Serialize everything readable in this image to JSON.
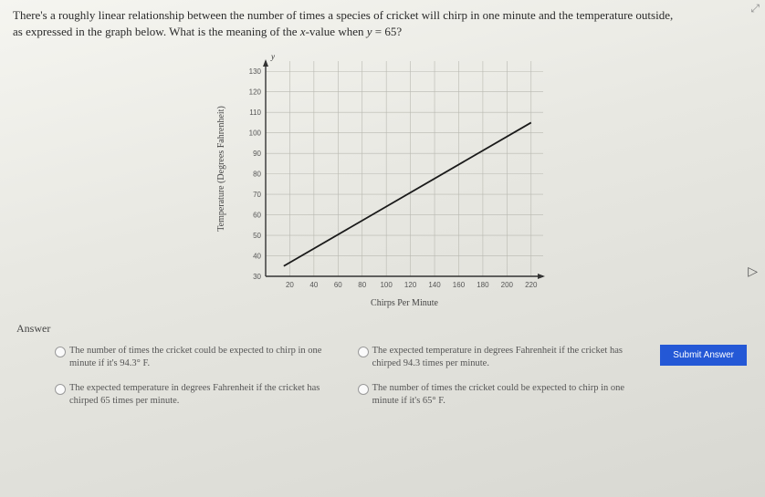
{
  "question": {
    "line1": "There's a roughly linear relationship between the number of times a species of cricket will chirp in one minute and the temperature outside,",
    "line2_prefix": "as expressed in the graph below. What is the meaning of the ",
    "line2_var": "x",
    "line2_mid": "-value when ",
    "line2_eq_var": "y",
    "line2_eq": " = 65?"
  },
  "chart": {
    "type": "line",
    "ylabel": "Temperature (Degrees Fahrenheit)",
    "xlabel": "Chirps Per Minute",
    "y_axis_label_top": "y",
    "x_ticks": [
      "20",
      "40",
      "60",
      "80",
      "100",
      "120",
      "140",
      "160",
      "180",
      "200",
      "220"
    ],
    "y_ticks": [
      "30",
      "40",
      "50",
      "60",
      "70",
      "80",
      "90",
      "100",
      "110",
      "120",
      "130"
    ],
    "xlim": [
      0,
      230
    ],
    "ylim": [
      30,
      135
    ],
    "line_points": [
      [
        15,
        35
      ],
      [
        220,
        105
      ]
    ],
    "axis_color": "#333333",
    "grid_color": "#b8b8b0",
    "line_color": "#1a1a1a",
    "line_width": 1.8,
    "tick_font_size": 8,
    "label_font_size": 10,
    "background_color": "transparent"
  },
  "answer_heading": "Answer",
  "choices": {
    "a": "The number of times the cricket could be expected to chirp in one minute if it's 94.3° F.",
    "b": "The expected temperature in degrees Fahrenheit if the cricket has chirped 94.3 times per minute.",
    "c": "The expected temperature in degrees Fahrenheit if the cricket has chirped 65 times per minute.",
    "d": "The number of times the cricket could be expected to chirp in one minute if it's 65° F."
  },
  "submit_label": "Submit Answer",
  "corner_icon": "⤢",
  "cursor_glyph": "▷"
}
